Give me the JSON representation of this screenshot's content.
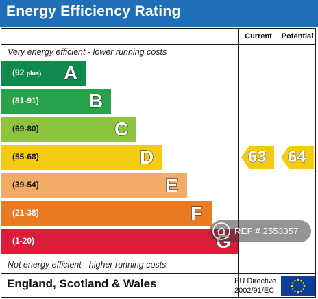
{
  "title": "Energy Efficiency Rating",
  "columns": {
    "current": "Current",
    "potential": "Potential"
  },
  "notes": {
    "top": "Very energy efficient - lower running costs",
    "bottom": "Not energy efficient - higher running costs"
  },
  "chart_data": {
    "type": "bar",
    "title": "Energy Efficiency Rating",
    "categories": [
      "A",
      "B",
      "C",
      "D",
      "E",
      "F",
      "G"
    ],
    "ranges": [
      "(92 plus)",
      "(81-91)",
      "(69-80)",
      "(55-68)",
      "(39-54)",
      "(21-38)",
      "(1-20)"
    ],
    "colors": [
      "#0f8a4c",
      "#27a24a",
      "#8cc43f",
      "#f4cb14",
      "#f3ab68",
      "#ea7a24",
      "#dc1c3b"
    ],
    "current": {
      "value": 63,
      "band": "D",
      "color": "#f4cb14"
    },
    "potential": {
      "value": 64,
      "band": "D",
      "color": "#f4cb14"
    }
  },
  "footer": {
    "region": "England, Scotland & Wales",
    "directive_line1": "EU Directive",
    "directive_line2": "2002/91/EC"
  },
  "watermark": {
    "text": "REF # 2553357"
  }
}
